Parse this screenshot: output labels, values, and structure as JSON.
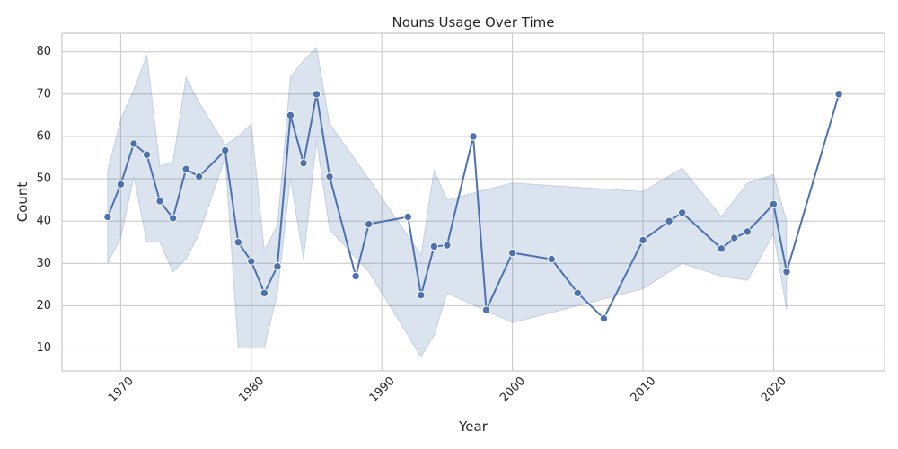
{
  "chart_data": {
    "type": "line",
    "title": "Nouns Usage Over Time",
    "xlabel": "Year",
    "ylabel": "Count",
    "xlim": [
      1965.5,
      2028.5
    ],
    "ylim": [
      4.6,
      84.4
    ],
    "xticks": [
      1970,
      1980,
      1990,
      2000,
      2010,
      2020
    ],
    "yticks": [
      10,
      20,
      30,
      40,
      50,
      60,
      70,
      80
    ],
    "xtick_rotation": 45,
    "grid": true,
    "colors": {
      "line": "#4c72b0",
      "band": "#4c72b0",
      "grid": "#cccccc",
      "frame": "#cccccc",
      "text": "#262626"
    },
    "series": [
      {
        "x": [
          1969,
          1970,
          1971,
          1972,
          1973,
          1974,
          1975,
          1976,
          1978,
          1979,
          1980,
          1981,
          1982,
          1983,
          1984,
          1985,
          1986,
          1988,
          1989,
          1992,
          1993,
          1994,
          1995,
          1997,
          1998,
          2000,
          2003,
          2005,
          2007,
          2010,
          2012,
          2013,
          2016,
          2017,
          2018,
          2020,
          2021,
          2025
        ],
        "y": [
          41,
          48.7,
          58.3,
          55.7,
          44.7,
          40.7,
          52.3,
          50.5,
          56.7,
          35,
          30.5,
          23,
          29.3,
          65,
          53.7,
          70,
          50.5,
          27,
          39.3,
          41,
          22.5,
          34,
          34.3,
          60,
          19,
          32.5,
          31,
          23,
          17,
          35.5,
          40,
          42,
          33.5,
          36,
          37.5,
          44,
          28,
          70
        ]
      }
    ],
    "confidence_band": {
      "x": [
        1969,
        1970,
        1971,
        1972,
        1973,
        1974,
        1975,
        1976,
        1978,
        1979,
        1980,
        1981,
        1982,
        1983,
        1984,
        1985,
        1986,
        1989,
        1993,
        1994,
        1995,
        2000,
        2010,
        2013,
        2016,
        2018,
        2020,
        2021
      ],
      "lower": [
        30,
        36,
        50.5,
        35,
        35,
        28,
        31,
        37,
        55,
        10,
        10,
        10,
        23,
        50,
        31,
        59,
        38,
        28,
        8,
        13,
        23,
        16,
        24,
        30,
        27,
        26,
        37,
        19
      ],
      "upper": [
        52,
        64,
        71,
        79.3,
        53,
        54,
        74,
        68,
        58,
        60,
        63,
        33,
        39,
        74,
        78,
        81,
        63,
        50,
        32,
        52,
        45,
        49,
        47,
        52.5,
        41,
        49,
        51,
        40
      ]
    }
  }
}
